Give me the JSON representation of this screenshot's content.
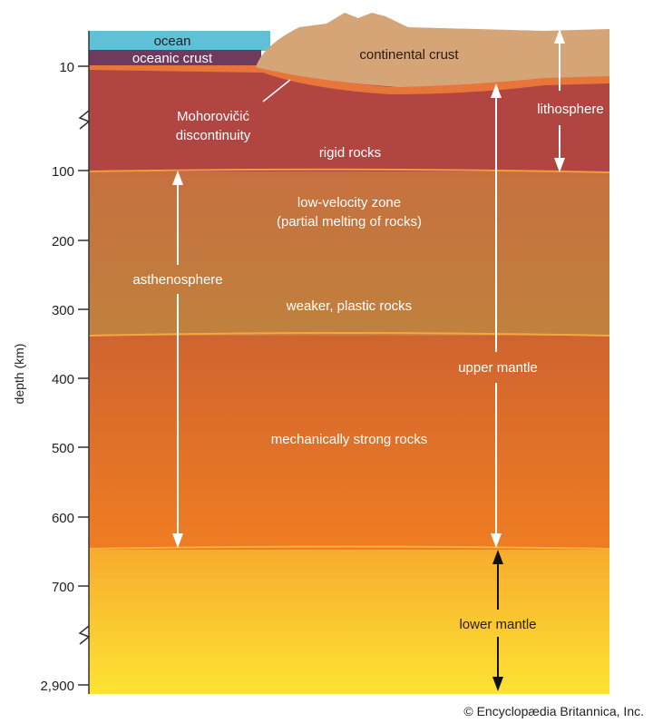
{
  "labels": {
    "ocean": "ocean",
    "oceanic_crust": "oceanic crust",
    "continental_crust": "continental crust",
    "moho_1": "Mohorovičić",
    "moho_2": "discontinuity",
    "rigid": "rigid rocks",
    "lithosphere": "lithosphere",
    "lvz_1": "low-velocity zone",
    "lvz_2": "(partial melting of rocks)",
    "asthenosphere": "asthenosphere",
    "weaker": "weaker, plastic rocks",
    "upper_mantle": "upper mantle",
    "strong": "mechanically strong rocks",
    "lower_mantle": "lower mantle"
  },
  "axis": {
    "label": "depth (km)",
    "ticks": [
      "10",
      "100",
      "200",
      "300",
      "400",
      "500",
      "600",
      "700",
      "2,900"
    ]
  },
  "credit": "© Encyclopædia Britannica, Inc.",
  "colors": {
    "ocean": "#5fc0d8",
    "oceanic_crust": "#6e3b5f",
    "continental_crust": "#d5a477",
    "lithosphere": "#b04542",
    "asthenosphere": "#c8773f",
    "mantle": "#e56f25",
    "lower_mantle": "#fbc52e"
  }
}
